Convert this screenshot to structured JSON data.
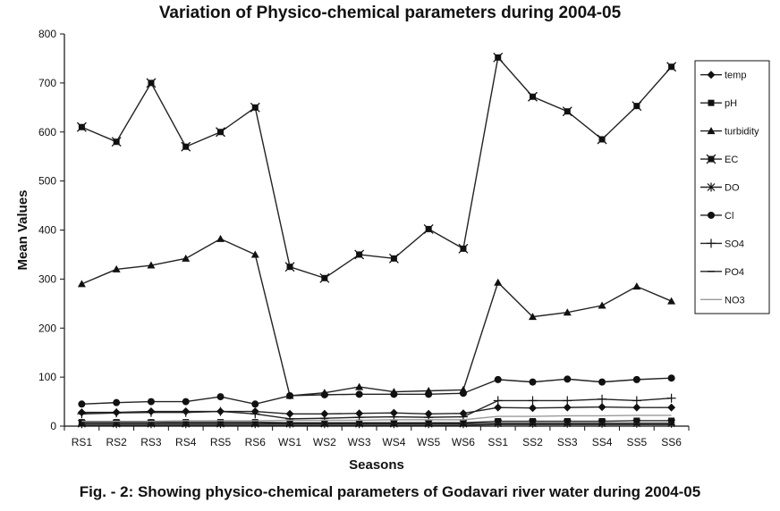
{
  "chart_data": {
    "type": "line",
    "title": "Variation of Physico-chemical parameters during 2004-05",
    "xlabel": "Seasons",
    "ylabel": "Mean Values",
    "ylim": [
      0,
      800
    ],
    "yticks": [
      0,
      100,
      200,
      300,
      400,
      500,
      600,
      700,
      800
    ],
    "categories": [
      "RS1",
      "RS2",
      "RS3",
      "RS4",
      "RS5",
      "RS6",
      "WS1",
      "WS2",
      "WS3",
      "WS4",
      "WS5",
      "WS6",
      "SS1",
      "SS2",
      "SS3",
      "SS4",
      "SS5",
      "SS6"
    ],
    "legend_position": "right",
    "grid": false,
    "series": [
      {
        "name": "temp",
        "marker": "diamond",
        "values": [
          28,
          28,
          30,
          30,
          30,
          30,
          25,
          25,
          26,
          27,
          25,
          26,
          38,
          37,
          38,
          39,
          38,
          38
        ]
      },
      {
        "name": "pH",
        "marker": "square",
        "values": [
          8,
          8,
          8,
          8,
          8,
          8,
          7,
          7,
          7,
          7,
          7,
          7,
          10,
          10,
          10,
          10,
          11,
          11
        ]
      },
      {
        "name": "turbidity",
        "marker": "triangle",
        "values": [
          290,
          320,
          328,
          342,
          382,
          350,
          62,
          68,
          80,
          70,
          72,
          74,
          293,
          223,
          232,
          246,
          285,
          255
        ]
      },
      {
        "name": "EC",
        "marker": "boxx",
        "values": [
          610,
          580,
          700,
          570,
          600,
          650,
          325,
          302,
          350,
          342,
          402,
          362,
          752,
          672,
          642,
          585,
          653,
          733
        ]
      },
      {
        "name": "DO",
        "marker": "star",
        "values": [
          5,
          5,
          5,
          5,
          5,
          5,
          5,
          5,
          5,
          5,
          5,
          5,
          6,
          6,
          6,
          6,
          6,
          6
        ]
      },
      {
        "name": "Cl",
        "marker": "circle",
        "values": [
          45,
          48,
          50,
          50,
          60,
          45,
          62,
          64,
          65,
          65,
          65,
          67,
          95,
          90,
          96,
          90,
          95,
          98
        ]
      },
      {
        "name": "SO4",
        "marker": "plus",
        "values": [
          25,
          27,
          28,
          28,
          30,
          25,
          15,
          16,
          18,
          19,
          18,
          19,
          52,
          52,
          52,
          55,
          52,
          57
        ]
      },
      {
        "name": "PO4",
        "marker": "dash",
        "values": [
          2,
          2,
          2,
          2,
          2,
          2,
          2,
          2,
          2,
          2,
          2,
          2,
          3,
          3,
          3,
          3,
          3,
          3
        ]
      },
      {
        "name": "NO3",
        "marker": "none",
        "values": [
          10,
          10,
          10,
          11,
          11,
          11,
          12,
          12,
          12,
          13,
          13,
          13,
          20,
          20,
          21,
          21,
          22,
          22
        ]
      }
    ]
  },
  "caption": "Fig. - 2: Showing physico-chemical parameters of Godavari river water during 2004-05"
}
